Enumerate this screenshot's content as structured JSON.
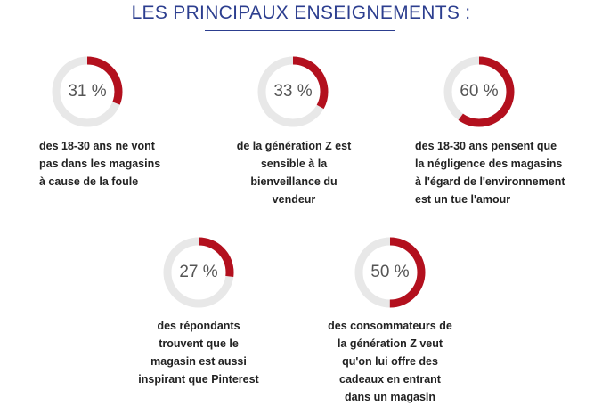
{
  "title": "LES PRINCIPAUX ENSEIGNEMENTS :",
  "colors": {
    "title": "#2c3e8f",
    "ring_track": "#e8e8e8",
    "ring_fill": "#b3101e",
    "percent_text": "#555555",
    "desc_text": "#222222"
  },
  "chart_data": [
    {
      "type": "pie",
      "percent_label": "31 %",
      "value": 31,
      "description_lines": [
        "des 18-30 ans ne vont",
        "pas dans les magasins",
        "à cause de la foule"
      ]
    },
    {
      "type": "pie",
      "percent_label": "33 %",
      "value": 33,
      "description_lines": [
        "de la génération Z est",
        "sensible à la",
        "bienveillance du",
        "vendeur"
      ]
    },
    {
      "type": "pie",
      "percent_label": "60 %",
      "value": 60,
      "description_lines": [
        "des 18-30 ans pensent que",
        "la négligence des magasins",
        "à l'égard de l'environnement",
        "est un tue l'amour"
      ]
    },
    {
      "type": "pie",
      "percent_label": "27 %",
      "value": 27,
      "description_lines": [
        "des répondants",
        "trouvent que le",
        "magasin est aussi",
        "inspirant que Pinterest"
      ]
    },
    {
      "type": "pie",
      "percent_label": "50 %",
      "value": 50,
      "description_lines": [
        "des consommateurs de",
        "la génération Z veut",
        "qu'on lui offre des",
        "cadeaux en entrant",
        "dans un magasin"
      ]
    }
  ]
}
